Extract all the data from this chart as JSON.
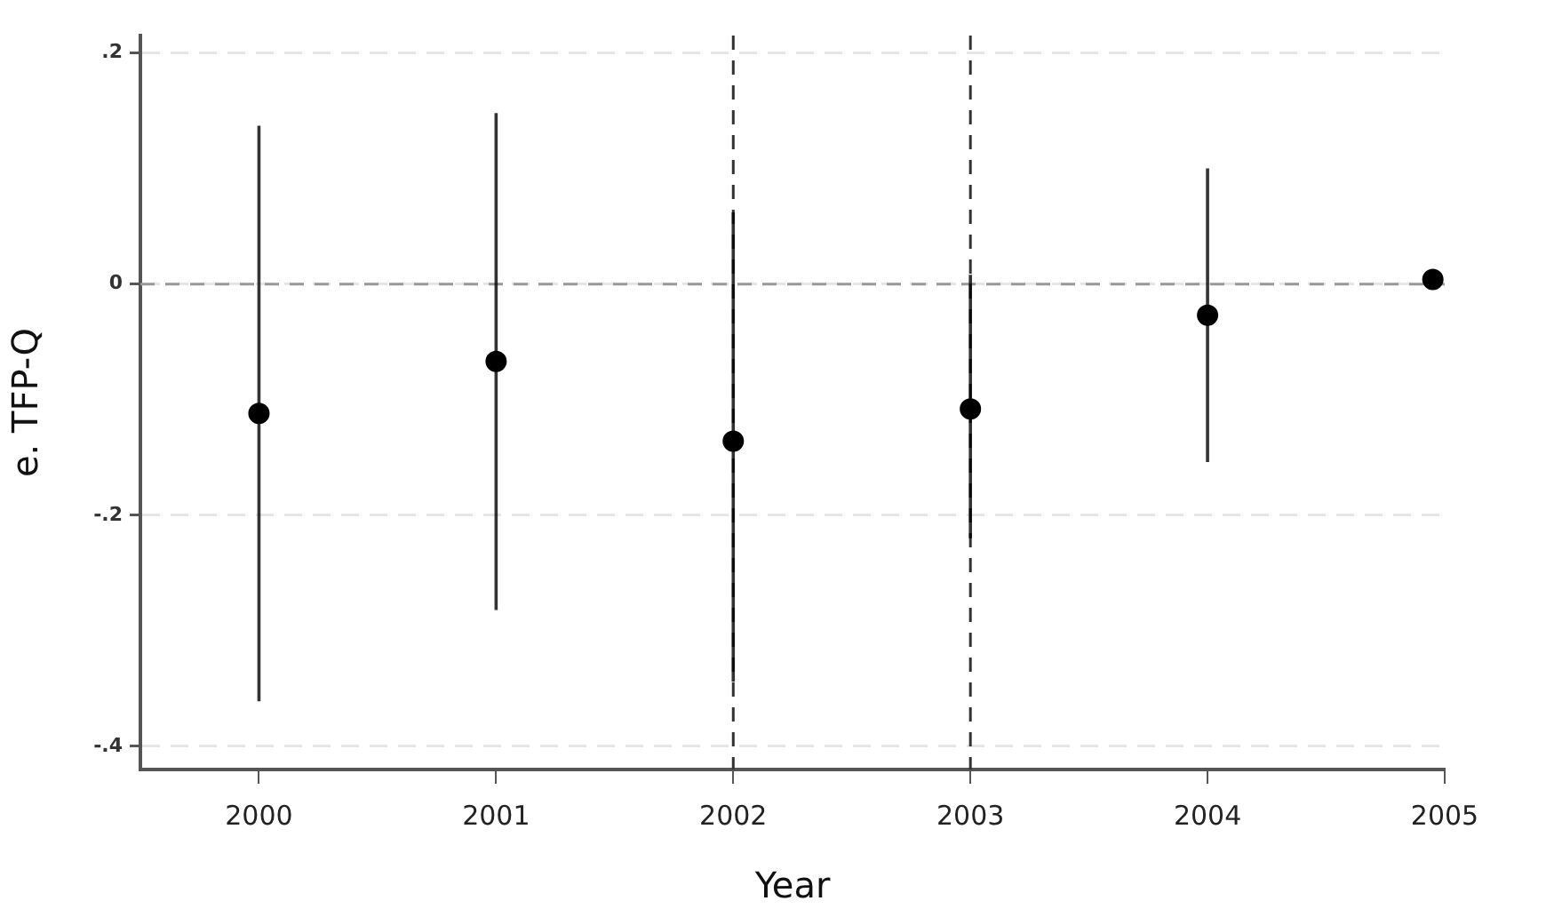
{
  "chart_data": {
    "type": "scatter",
    "xlabel": "Year",
    "ylabel": "e. TFP-Q",
    "x": [
      2000,
      2001,
      2002,
      2003,
      2004,
      2004.95
    ],
    "series": [
      {
        "color": "#000000",
        "values": [
          -0.112,
          -0.067,
          -0.136,
          -0.108,
          -0.027,
          0.004
        ],
        "errors": [
          [
            -0.361,
            0.137
          ],
          [
            -0.282,
            0.148
          ],
          [
            -0.344,
            0.062
          ],
          [
            -0.22,
            0.008
          ],
          [
            -0.154,
            0.1
          ],
          null
        ]
      }
    ],
    "xlim": [
      1999.5,
      2005
    ],
    "xticks": [
      2000,
      2001,
      2002,
      2003,
      2004,
      2005
    ],
    "ylim": [
      -0.42,
      0.215
    ],
    "yticks": [
      {
        "value": -0.4,
        "label": "-.4"
      },
      {
        "value": -0.2,
        "label": "-.2"
      },
      {
        "value": 0,
        "label": "0"
      },
      {
        "value": 0.2,
        "label": ".2"
      }
    ],
    "ref_lines": [
      {
        "axis": "y",
        "value": 0,
        "color": "#999999",
        "line_style": "dashed"
      },
      {
        "axis": "x",
        "value": 2002,
        "color": "#333333",
        "line_style": "dashed"
      },
      {
        "axis": "x",
        "value": 2003,
        "color": "#333333",
        "line_style": "dashed"
      }
    ],
    "grid": "y",
    "legend": false,
    "marker": "circle"
  }
}
